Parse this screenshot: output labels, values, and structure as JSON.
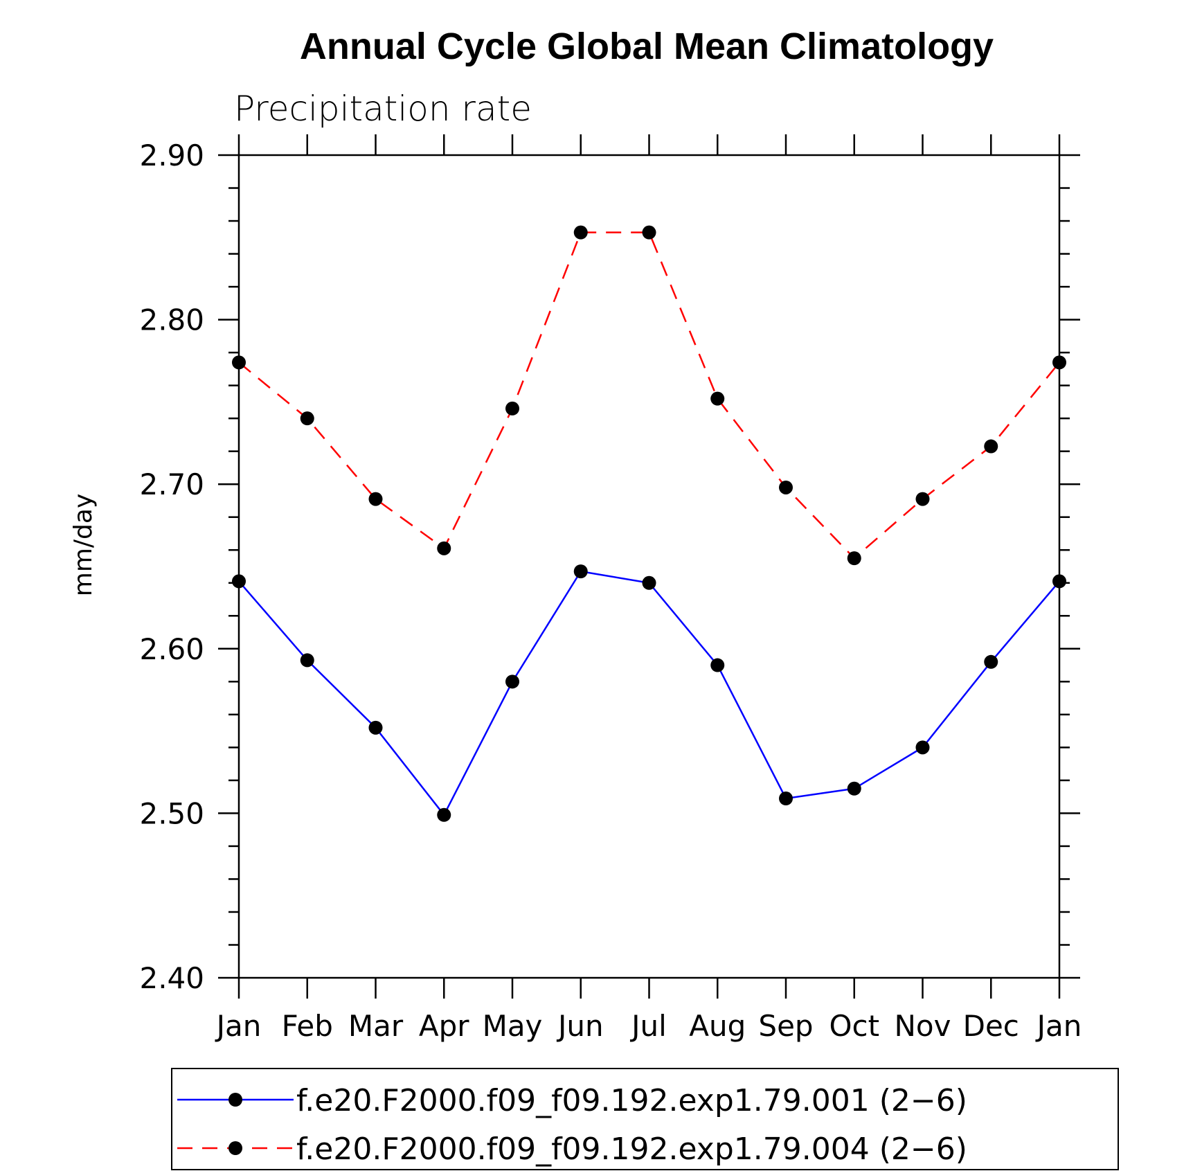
{
  "chart_data": {
    "type": "line",
    "title": "Annual Cycle Global Mean Climatology",
    "subtitle": "Precipitation rate",
    "xlabel": "",
    "ylabel": "mm/day",
    "categories": [
      "Jan",
      "Feb",
      "Mar",
      "Apr",
      "May",
      "Jun",
      "Jul",
      "Aug",
      "Sep",
      "Oct",
      "Nov",
      "Dec",
      "Jan"
    ],
    "ylim": [
      2.4,
      2.9
    ],
    "yticks": [
      2.4,
      2.5,
      2.6,
      2.7,
      2.8,
      2.9
    ],
    "ytick_labels": [
      "2.40",
      "2.50",
      "2.60",
      "2.70",
      "2.80",
      "2.90"
    ],
    "grid": false,
    "legend_position": "bottom",
    "series": [
      {
        "name": "f.e20.F2000.f09_f09.192.exp1.79.001 (2−6)",
        "color": "#0000ff",
        "style": "solid",
        "marker": "circle",
        "values": [
          2.641,
          2.593,
          2.552,
          2.499,
          2.58,
          2.647,
          2.64,
          2.59,
          2.509,
          2.515,
          2.54,
          2.592,
          2.641
        ]
      },
      {
        "name": "f.e20.F2000.f09_f09.192.exp1.79.004 (2−6)",
        "color": "#ff0000",
        "style": "dashed",
        "marker": "circle",
        "values": [
          2.774,
          2.74,
          2.691,
          2.661,
          2.746,
          2.853,
          2.853,
          2.752,
          2.698,
          2.655,
          2.691,
          2.723,
          2.774
        ]
      }
    ]
  }
}
